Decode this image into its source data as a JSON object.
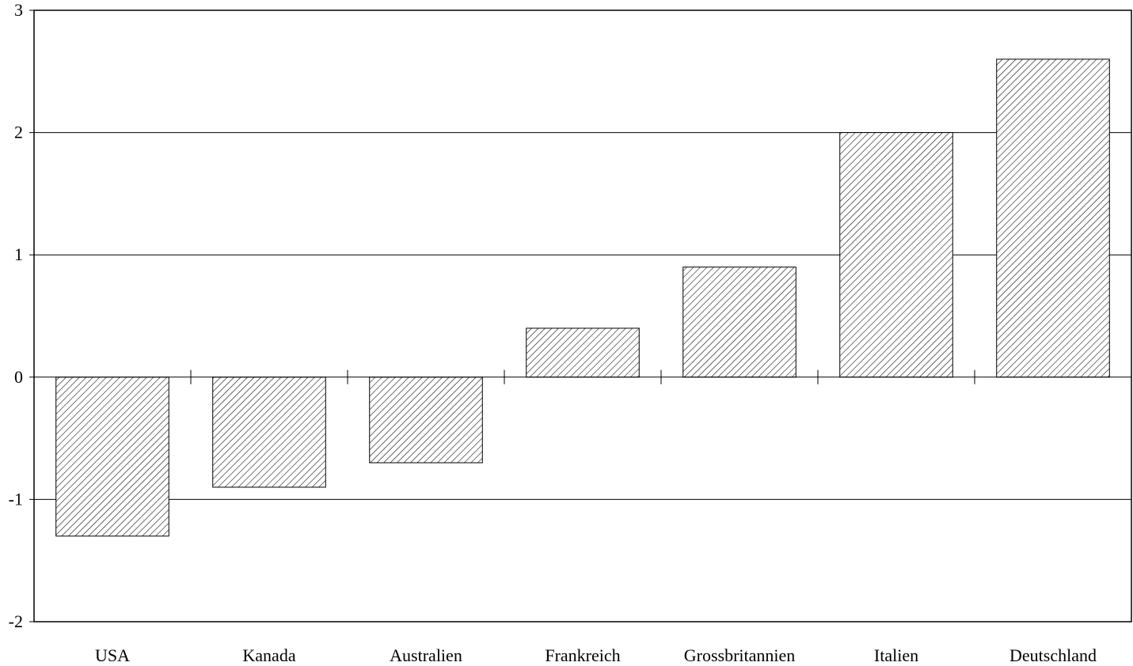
{
  "chart_data": {
    "type": "bar",
    "categories": [
      "USA",
      "Kanada",
      "Australien",
      "Frankreich",
      "Grossbritannien",
      "Italien",
      "Deutschland"
    ],
    "values": [
      -1.3,
      -0.9,
      -0.7,
      0.4,
      0.9,
      2.0,
      2.6
    ],
    "title": "",
    "xlabel": "",
    "ylabel": "",
    "ylim": [
      -2,
      3
    ],
    "yticks": [
      "-2",
      "-1",
      "0",
      "1",
      "2",
      "3"
    ],
    "grid": true,
    "bar_fill": "hatched",
    "colors": {
      "bar_fill": "#ffffff",
      "hatch": "#000000",
      "axis": "#000000",
      "grid": "#000000"
    }
  }
}
